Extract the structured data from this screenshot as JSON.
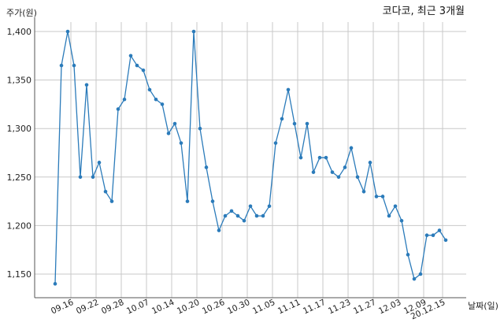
{
  "chart_data": {
    "type": "line",
    "title": "코다코, 최근 3개월",
    "ylabel": "주가(원)",
    "xlabel": "날짜(일)",
    "ylim": [
      1135,
      1410
    ],
    "yticks": [
      1150,
      1200,
      1250,
      1300,
      1350,
      1400
    ],
    "ytick_labels": [
      "1,150",
      "1,200",
      "1,250",
      "1,300",
      "1,350",
      "1,400"
    ],
    "grid": true,
    "x_ticks": [
      {
        "i": 2.5,
        "label": "09.16"
      },
      {
        "i": 6.5,
        "label": "09.22"
      },
      {
        "i": 10.5,
        "label": "09.28"
      },
      {
        "i": 14.5,
        "label": "10.07"
      },
      {
        "i": 18.5,
        "label": "10.14"
      },
      {
        "i": 22.5,
        "label": "10.20"
      },
      {
        "i": 26.5,
        "label": "10.26"
      },
      {
        "i": 30.5,
        "label": "10.30"
      },
      {
        "i": 34.5,
        "label": "11.05"
      },
      {
        "i": 38.5,
        "label": "11.11"
      },
      {
        "i": 42.5,
        "label": "11.17"
      },
      {
        "i": 46.5,
        "label": "11.23"
      },
      {
        "i": 50.5,
        "label": "11.27"
      },
      {
        "i": 54.5,
        "label": "12.03"
      },
      {
        "i": 58.5,
        "label": "12.09"
      },
      {
        "i": 61.5,
        "label": "20.12.15"
      }
    ],
    "series": [
      {
        "values": [
          1140,
          1365,
          1400,
          1365,
          1250,
          1345,
          1250,
          1265,
          1235,
          1225,
          1320,
          1330,
          1375,
          1365,
          1360,
          1340,
          1330,
          1325,
          1295,
          1305,
          1285,
          1225,
          1400,
          1300,
          1260,
          1225,
          1195,
          1210,
          1215,
          1210,
          1205,
          1220,
          1210,
          1210,
          1220,
          1285,
          1310,
          1340,
          1305,
          1270,
          1305,
          1255,
          1270,
          1270,
          1255,
          1250,
          1260,
          1280,
          1250,
          1235,
          1265,
          1230,
          1230,
          1210,
          1220,
          1205,
          1170,
          1145,
          1150,
          1190,
          1190,
          1195,
          1185
        ],
        "color": "#2b7bba"
      }
    ]
  }
}
